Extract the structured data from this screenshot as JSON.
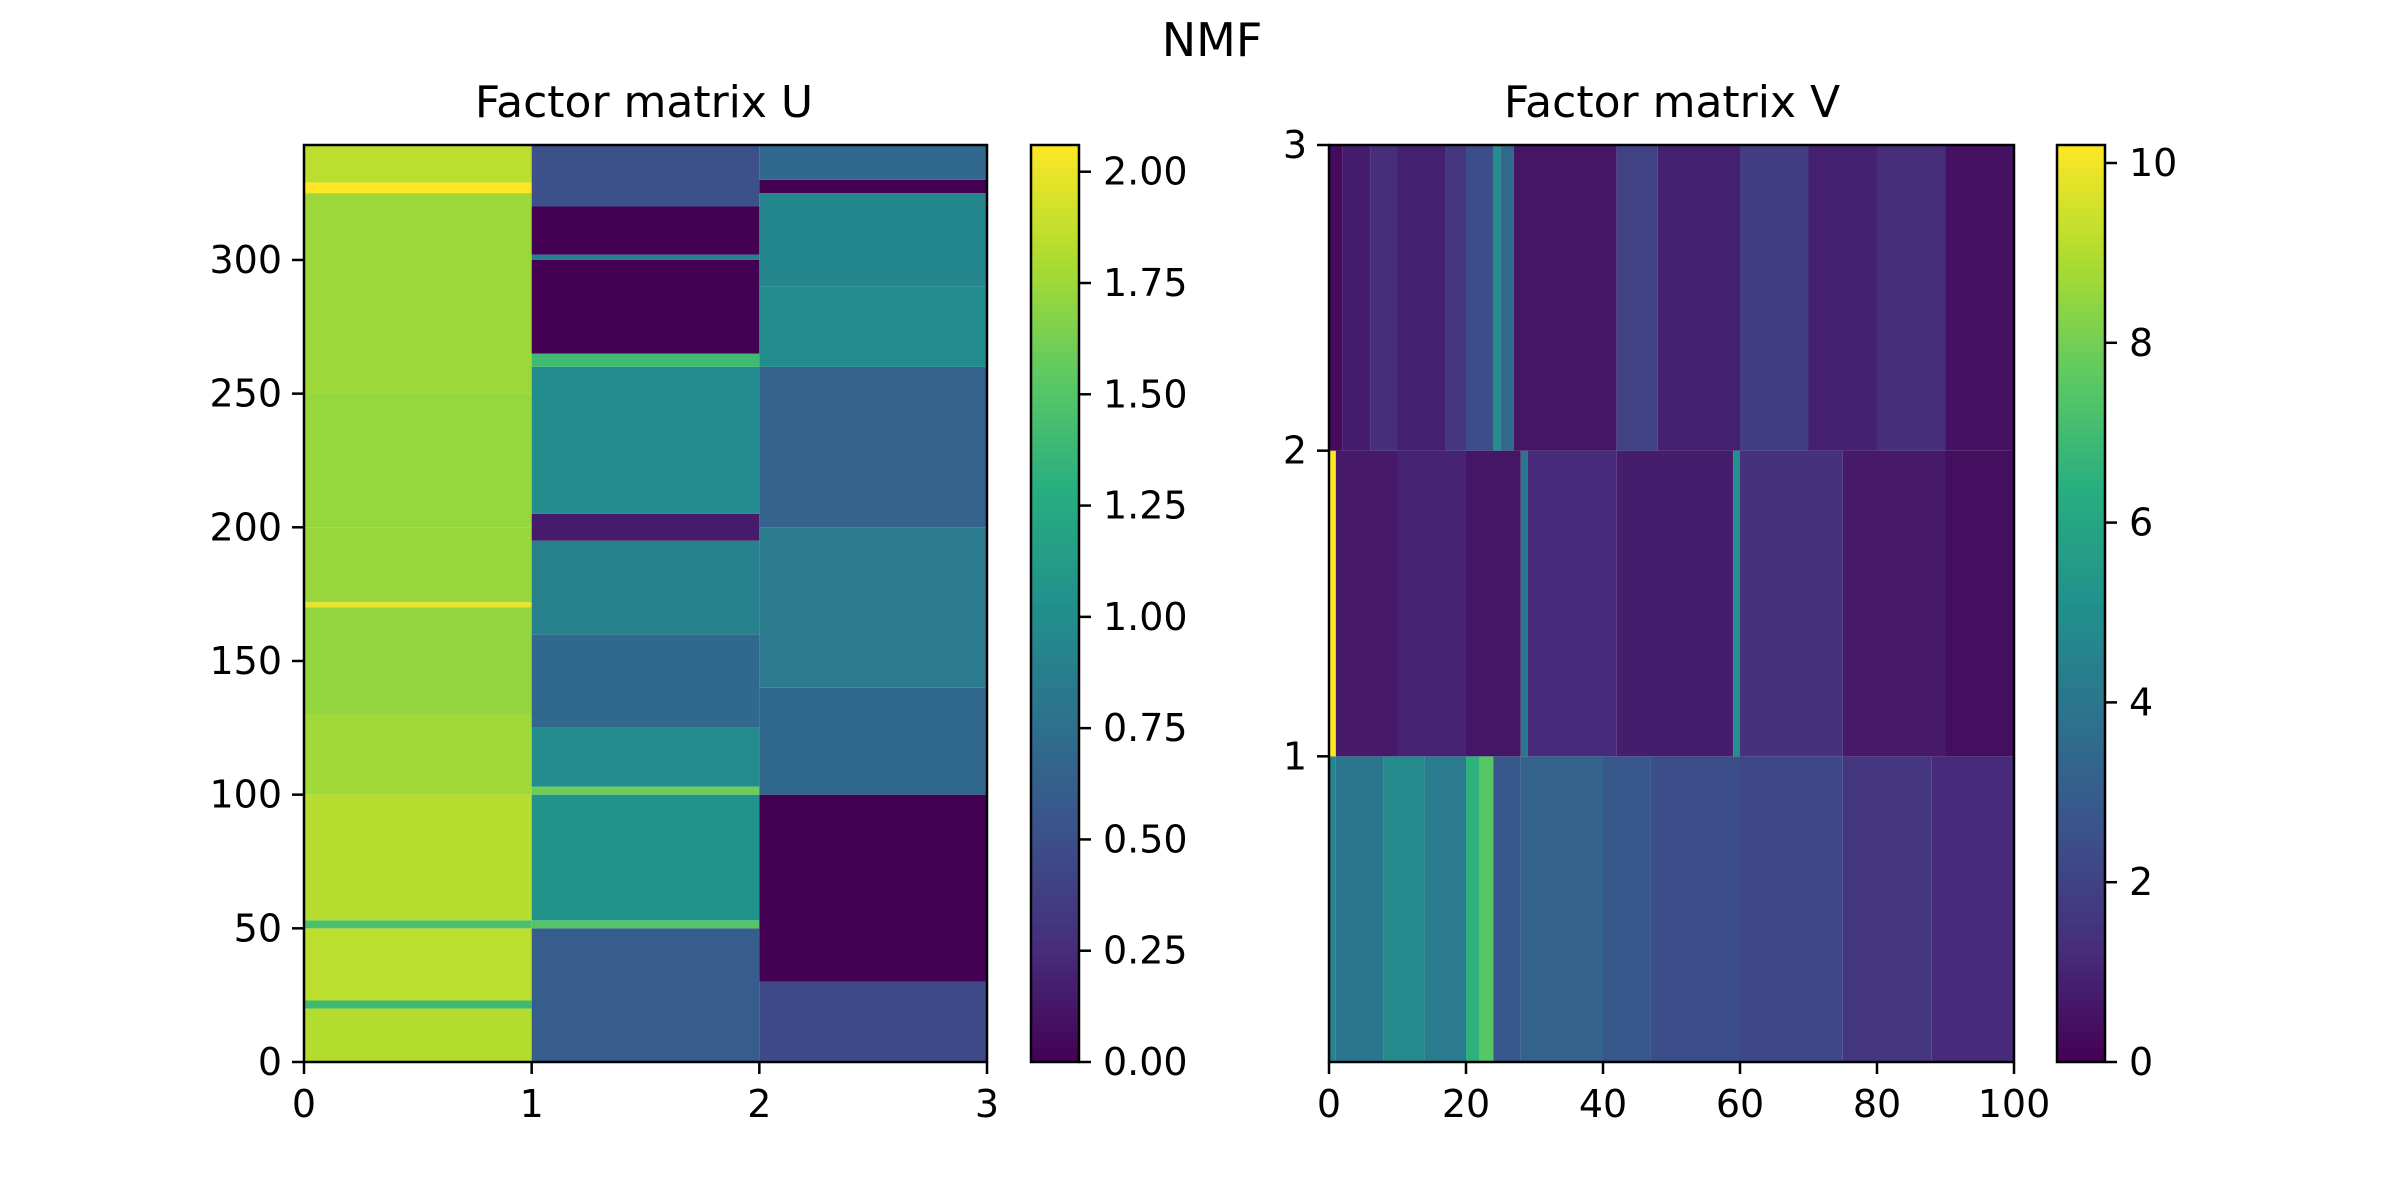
{
  "figure": {
    "title": "NMF"
  },
  "colormap": {
    "name": "viridis",
    "stops": [
      "#440154",
      "#472d7b",
      "#3b528b",
      "#2c728e",
      "#21918c",
      "#28ae80",
      "#5ec962",
      "#addc30",
      "#fde725"
    ]
  },
  "chart_data": [
    {
      "type": "heatmap",
      "name": "Factor matrix U",
      "title": "Factor matrix U",
      "xlabel": "",
      "ylabel": "",
      "xlim": [
        0,
        3
      ],
      "ylim": [
        0,
        343
      ],
      "xticks": [
        "0",
        "1",
        "2",
        "3"
      ],
      "yticks": [
        "0",
        "50",
        "100",
        "150",
        "200",
        "250",
        "300"
      ],
      "colorbar": {
        "min": 0.0,
        "max": 2.06,
        "ticks": [
          "0.00",
          "0.25",
          "0.50",
          "0.75",
          "1.00",
          "1.25",
          "1.50",
          "1.75",
          "2.00"
        ]
      },
      "columns": [
        {
          "x_range": [
            0,
            1
          ],
          "segments": [
            {
              "from": 0,
              "to": 20,
              "value": 1.82
            },
            {
              "from": 20,
              "to": 23,
              "value": 1.4
            },
            {
              "from": 23,
              "to": 50,
              "value": 1.85
            },
            {
              "from": 50,
              "to": 53,
              "value": 1.45
            },
            {
              "from": 53,
              "to": 100,
              "value": 1.83
            },
            {
              "from": 100,
              "to": 130,
              "value": 1.76
            },
            {
              "from": 130,
              "to": 170,
              "value": 1.72
            },
            {
              "from": 170,
              "to": 172,
              "value": 2.0
            },
            {
              "from": 172,
              "to": 200,
              "value": 1.74
            },
            {
              "from": 200,
              "to": 250,
              "value": 1.73
            },
            {
              "from": 250,
              "to": 325,
              "value": 1.75
            },
            {
              "from": 325,
              "to": 329,
              "value": 2.06
            },
            {
              "from": 329,
              "to": 343,
              "value": 1.85
            }
          ]
        },
        {
          "x_range": [
            1,
            2
          ],
          "segments": [
            {
              "from": 0,
              "to": 50,
              "value": 0.6
            },
            {
              "from": 50,
              "to": 53,
              "value": 1.5
            },
            {
              "from": 53,
              "to": 100,
              "value": 1.05
            },
            {
              "from": 100,
              "to": 103,
              "value": 1.6
            },
            {
              "from": 103,
              "to": 125,
              "value": 1.0
            },
            {
              "from": 125,
              "to": 160,
              "value": 0.7
            },
            {
              "from": 160,
              "to": 195,
              "value": 0.9
            },
            {
              "from": 195,
              "to": 205,
              "value": 0.15
            },
            {
              "from": 205,
              "to": 260,
              "value": 1.0
            },
            {
              "from": 260,
              "to": 265,
              "value": 1.4
            },
            {
              "from": 265,
              "to": 300,
              "value": 0.0
            },
            {
              "from": 300,
              "to": 302,
              "value": 0.9
            },
            {
              "from": 302,
              "to": 320,
              "value": 0.0
            },
            {
              "from": 320,
              "to": 343,
              "value": 0.5
            }
          ]
        },
        {
          "x_range": [
            2,
            3
          ],
          "segments": [
            {
              "from": 0,
              "to": 30,
              "value": 0.45
            },
            {
              "from": 30,
              "to": 100,
              "value": 0.0
            },
            {
              "from": 100,
              "to": 140,
              "value": 0.7
            },
            {
              "from": 140,
              "to": 200,
              "value": 0.85
            },
            {
              "from": 200,
              "to": 260,
              "value": 0.65
            },
            {
              "from": 260,
              "to": 290,
              "value": 1.0
            },
            {
              "from": 290,
              "to": 325,
              "value": 0.95
            },
            {
              "from": 325,
              "to": 330,
              "value": 0.0
            },
            {
              "from": 330,
              "to": 343,
              "value": 0.7
            }
          ]
        }
      ]
    },
    {
      "type": "heatmap",
      "name": "Factor matrix V",
      "title": "Factor matrix V",
      "xlabel": "",
      "ylabel": "",
      "xlim": [
        0,
        100
      ],
      "ylim": [
        0,
        3
      ],
      "xticks": [
        "0",
        "20",
        "40",
        "60",
        "80",
        "100"
      ],
      "yticks": [
        "1",
        "2",
        "3"
      ],
      "colorbar": {
        "min": 0,
        "max": 10.2,
        "ticks": [
          "0",
          "2",
          "4",
          "6",
          "8",
          "10"
        ]
      },
      "rows": [
        {
          "y_range": [
            0,
            1
          ],
          "segments": [
            {
              "from": 0,
              "to": 1,
              "value": 4.5
            },
            {
              "from": 1,
              "to": 8,
              "value": 4.0
            },
            {
              "from": 8,
              "to": 14,
              "value": 4.8
            },
            {
              "from": 14,
              "to": 20,
              "value": 4.2
            },
            {
              "from": 20,
              "to": 22,
              "value": 6.5
            },
            {
              "from": 22,
              "to": 24,
              "value": 7.5
            },
            {
              "from": 24,
              "to": 28,
              "value": 2.8
            },
            {
              "from": 28,
              "to": 40,
              "value": 3.2
            },
            {
              "from": 40,
              "to": 47,
              "value": 2.8
            },
            {
              "from": 47,
              "to": 60,
              "value": 2.4
            },
            {
              "from": 60,
              "to": 75,
              "value": 2.2
            },
            {
              "from": 75,
              "to": 88,
              "value": 1.6
            },
            {
              "from": 88,
              "to": 100,
              "value": 1.2
            }
          ]
        },
        {
          "y_range": [
            1,
            2
          ],
          "segments": [
            {
              "from": 0,
              "to": 1,
              "value": 10.2
            },
            {
              "from": 1,
              "to": 10,
              "value": 0.7
            },
            {
              "from": 10,
              "to": 20,
              "value": 1.0
            },
            {
              "from": 20,
              "to": 28,
              "value": 0.6
            },
            {
              "from": 28,
              "to": 29,
              "value": 4.0
            },
            {
              "from": 29,
              "to": 42,
              "value": 1.2
            },
            {
              "from": 42,
              "to": 59,
              "value": 0.8
            },
            {
              "from": 59,
              "to": 60,
              "value": 5.0
            },
            {
              "from": 60,
              "to": 75,
              "value": 1.4
            },
            {
              "from": 75,
              "to": 90,
              "value": 0.7
            },
            {
              "from": 90,
              "to": 100,
              "value": 0.4
            }
          ]
        },
        {
          "y_range": [
            2,
            3
          ],
          "segments": [
            {
              "from": 0,
              "to": 2,
              "value": 0.3
            },
            {
              "from": 2,
              "to": 6,
              "value": 0.8
            },
            {
              "from": 6,
              "to": 10,
              "value": 1.3
            },
            {
              "from": 10,
              "to": 17,
              "value": 0.9
            },
            {
              "from": 17,
              "to": 20,
              "value": 1.6
            },
            {
              "from": 20,
              "to": 24,
              "value": 2.4
            },
            {
              "from": 24,
              "to": 25,
              "value": 5.0
            },
            {
              "from": 25,
              "to": 27,
              "value": 3.5
            },
            {
              "from": 27,
              "to": 42,
              "value": 0.6
            },
            {
              "from": 42,
              "to": 48,
              "value": 2.0
            },
            {
              "from": 48,
              "to": 60,
              "value": 0.9
            },
            {
              "from": 60,
              "to": 70,
              "value": 1.8
            },
            {
              "from": 70,
              "to": 80,
              "value": 0.9
            },
            {
              "from": 80,
              "to": 90,
              "value": 1.3
            },
            {
              "from": 90,
              "to": 100,
              "value": 0.5
            }
          ]
        }
      ]
    }
  ]
}
